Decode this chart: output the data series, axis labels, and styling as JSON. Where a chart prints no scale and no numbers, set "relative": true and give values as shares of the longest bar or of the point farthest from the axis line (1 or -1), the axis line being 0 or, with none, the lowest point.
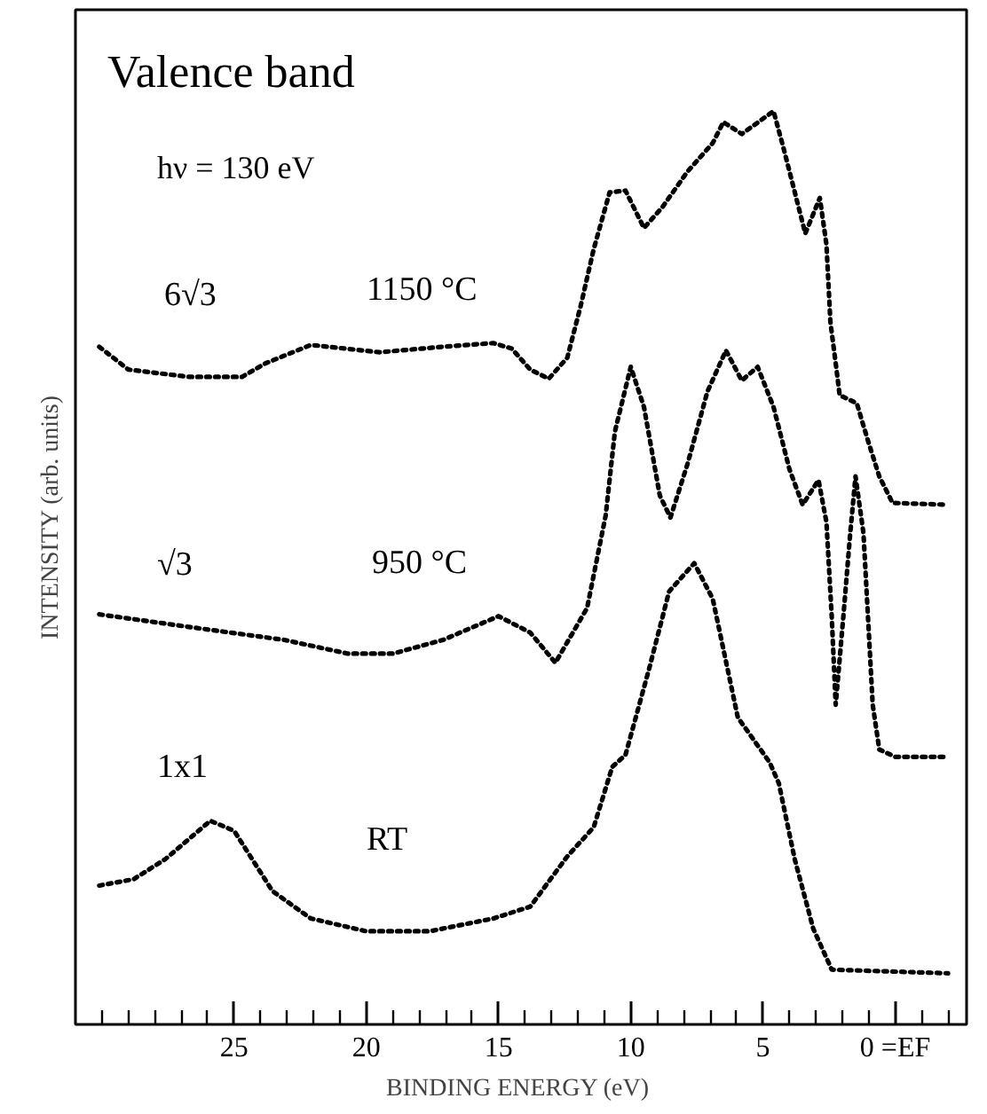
{
  "chart_data": {
    "type": "line",
    "relative": true,
    "title": "Valence band",
    "xlabel": "BINDING ENERGY  (eV)",
    "ylabel": "INTENSITY (arb. units)",
    "annotations": [
      "hν = 130 eV",
      "1150 °C",
      "950 °C",
      "RT"
    ],
    "xlim": [
      31,
      -2.7
    ],
    "xticks": [
      {
        "value": 30,
        "label": null
      },
      {
        "value": 29,
        "label": null
      },
      {
        "value": 28,
        "label": null
      },
      {
        "value": 27,
        "label": null
      },
      {
        "value": 26,
        "label": null
      },
      25,
      {
        "value": 24,
        "label": null
      },
      {
        "value": 23,
        "label": null
      },
      {
        "value": 22,
        "label": null
      },
      {
        "value": 21,
        "label": null
      },
      20,
      {
        "value": 19,
        "label": null
      },
      {
        "value": 18,
        "label": null
      },
      {
        "value": 17,
        "label": null
      },
      {
        "value": 16,
        "label": null
      },
      15,
      {
        "value": 14,
        "label": null
      },
      {
        "value": 13,
        "label": null
      },
      {
        "value": 12,
        "label": null
      },
      {
        "value": 11,
        "label": null
      },
      10,
      {
        "value": 9,
        "label": null
      },
      {
        "value": 8,
        "label": null
      },
      {
        "value": 7,
        "label": null
      },
      {
        "value": 6,
        "label": null
      },
      5,
      {
        "value": 4,
        "label": null
      },
      {
        "value": 3,
        "label": null
      },
      {
        "value": 2,
        "label": null
      },
      {
        "value": 1,
        "label": null
      },
      {
        "value": 0,
        "label": "0 =EF"
      },
      {
        "value": -1,
        "label": null
      },
      {
        "value": -2,
        "label": null
      }
    ],
    "tick_labels": "x",
    "grid": false,
    "marker": "none",
    "line_style": "dotted",
    "series": [
      {
        "name": "6√3",
        "color": "#000000",
        "x": [
          30.1,
          29.0,
          26.7,
          24.7,
          23.8,
          22.1,
          19.5,
          17.1,
          15.2,
          14.5,
          13.8,
          13.1,
          12.4,
          11.9,
          11.4,
          10.8,
          10.2,
          9.5,
          8.8,
          7.85,
          6.9,
          6.5,
          5.8,
          4.6,
          4.2,
          3.4,
          2.85,
          2.6,
          2.45,
          2.25,
          2.1,
          1.8,
          1.45,
          1.05,
          0.6,
          0.1,
          -2.0
        ],
        "values": [
          0.742,
          0.717,
          0.709,
          0.709,
          0.724,
          0.744,
          0.736,
          0.742,
          0.746,
          0.74,
          0.717,
          0.707,
          0.73,
          0.786,
          0.849,
          0.911,
          0.913,
          0.872,
          0.895,
          0.934,
          0.965,
          0.988,
          0.975,
          1.0,
          0.957,
          0.866,
          0.905,
          0.854,
          0.769,
          0.724,
          0.689,
          0.685,
          0.68,
          0.641,
          0.6,
          0.571,
          0.569
        ]
      },
      {
        "name": "√3",
        "color": "#000000",
        "x": [
          30.1,
          26.65,
          23.1,
          20.7,
          19.0,
          17.1,
          15.0,
          13.8,
          12.85,
          11.65,
          10.95,
          10.6,
          10.0,
          9.5,
          8.9,
          8.5,
          7.85,
          7.1,
          6.4,
          5.8,
          5.2,
          4.6,
          4.0,
          3.5,
          2.9,
          2.6,
          2.4,
          2.25,
          1.95,
          1.7,
          1.5,
          1.2,
          0.85,
          0.6,
          0.0,
          -2.0
        ],
        "values": [
          0.449,
          0.435,
          0.421,
          0.406,
          0.406,
          0.421,
          0.447,
          0.429,
          0.396,
          0.456,
          0.557,
          0.649,
          0.72,
          0.676,
          0.579,
          0.555,
          0.614,
          0.693,
          0.738,
          0.705,
          0.72,
          0.676,
          0.608,
          0.569,
          0.596,
          0.55,
          0.447,
          0.35,
          0.45,
          0.538,
          0.6,
          0.538,
          0.35,
          0.301,
          0.293,
          0.293
        ]
      },
      {
        "name": "1x1",
        "color": "#000000",
        "x": [
          30.1,
          28.8,
          27.6,
          25.9,
          25.0,
          23.55,
          22.1,
          20.0,
          17.6,
          15.2,
          13.8,
          12.4,
          11.4,
          10.7,
          10.2,
          9.3,
          8.55,
          7.6,
          6.9,
          5.95,
          4.75,
          4.4,
          3.8,
          3.1,
          2.4,
          -2.0
        ],
        "values": [
          0.152,
          0.159,
          0.181,
          0.223,
          0.212,
          0.146,
          0.116,
          0.102,
          0.102,
          0.116,
          0.129,
          0.184,
          0.216,
          0.282,
          0.295,
          0.39,
          0.474,
          0.505,
          0.466,
          0.336,
          0.287,
          0.264,
          0.181,
          0.105,
          0.06,
          0.056
        ]
      }
    ]
  }
}
